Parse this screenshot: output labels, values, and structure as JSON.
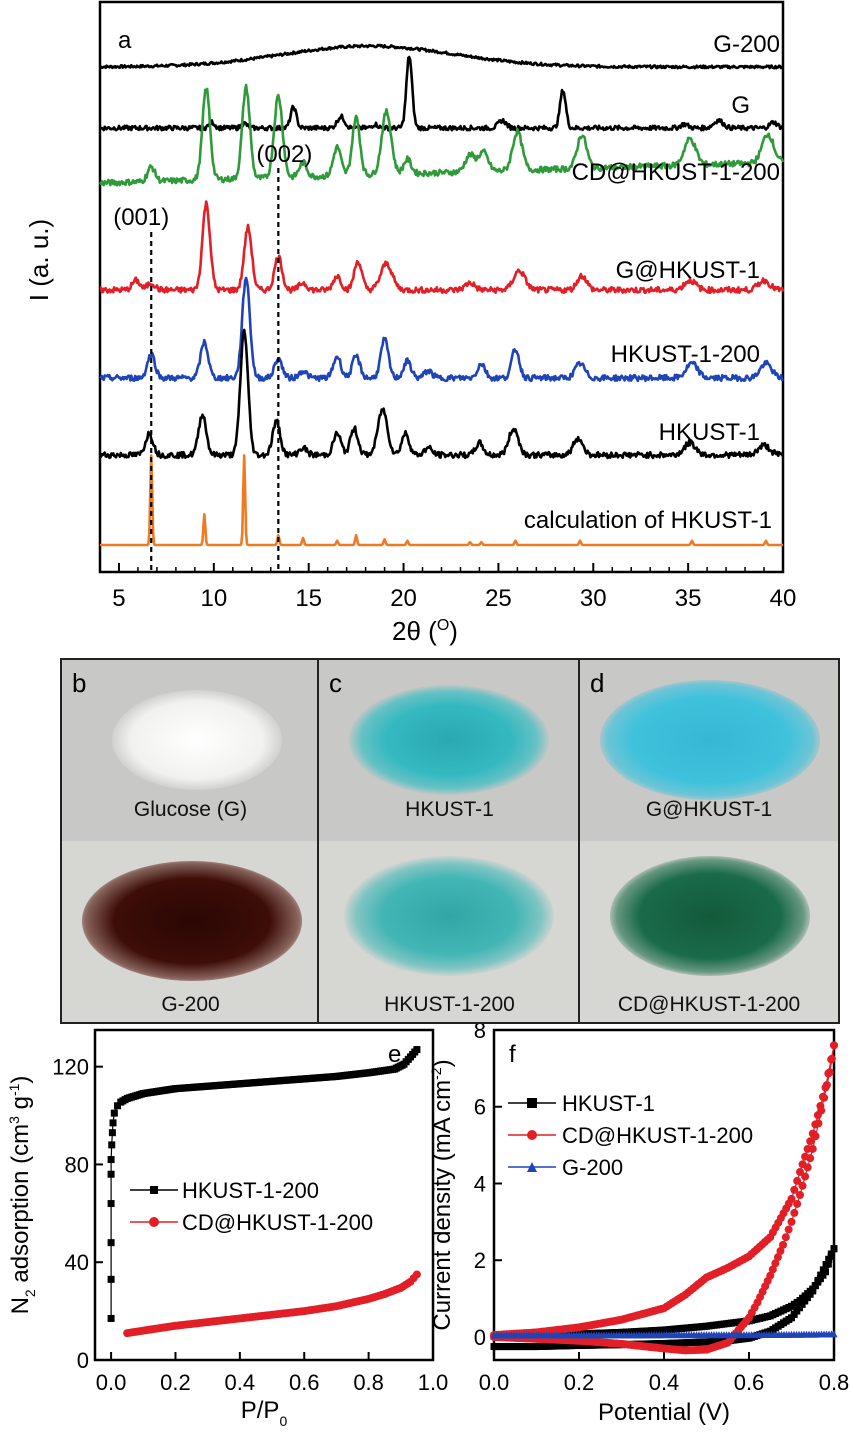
{
  "chart_data": [
    {
      "panel": "a",
      "type": "line",
      "xlabel": "2θ (°)",
      "ylabel": "I (a. u.)",
      "xlim": [
        4,
        40
      ],
      "xticks": [
        5,
        10,
        15,
        20,
        25,
        30,
        35,
        40
      ],
      "yticks": "none",
      "annotations": [
        {
          "text": "(001)",
          "x": 6.7
        },
        {
          "text": "(002)",
          "x": 13.4
        }
      ],
      "series": [
        {
          "name": "G-200",
          "color": "#000000",
          "peaks": [
            {
              "x": 18.2,
              "h": 0.95,
              "w": 4.5
            }
          ]
        },
        {
          "name": "G",
          "color": "#000000",
          "peaks": [
            {
              "x": 9.9,
              "h": 0.15,
              "w": 0.15
            },
            {
              "x": 11.6,
              "h": 0.12,
              "w": 0.15
            },
            {
              "x": 14.2,
              "h": 0.55,
              "w": 0.15
            },
            {
              "x": 16.7,
              "h": 0.3,
              "w": 0.2
            },
            {
              "x": 18.5,
              "h": 0.1,
              "w": 0.15
            },
            {
              "x": 20.3,
              "h": 1.9,
              "w": 0.15
            },
            {
              "x": 25.2,
              "h": 0.2,
              "w": 0.2
            },
            {
              "x": 28.4,
              "h": 1.0,
              "w": 0.15
            },
            {
              "x": 34.8,
              "h": 0.1,
              "w": 0.2
            },
            {
              "x": 36.6,
              "h": 0.2,
              "w": 0.25
            },
            {
              "x": 39.5,
              "h": 0.15,
              "w": 0.2
            }
          ]
        },
        {
          "name": "CD@HKUST-1-200",
          "color": "#2e9a3a",
          "peaks": [
            {
              "x": 6.7,
              "h": 0.3,
              "w": 0.2
            },
            {
              "x": 9.6,
              "h": 1.9,
              "w": 0.2
            },
            {
              "x": 11.7,
              "h": 1.9,
              "w": 0.2
            },
            {
              "x": 13.4,
              "h": 1.7,
              "w": 0.22
            },
            {
              "x": 14.7,
              "h": 0.3,
              "w": 0.2
            },
            {
              "x": 16.5,
              "h": 0.6,
              "w": 0.2
            },
            {
              "x": 17.5,
              "h": 1.2,
              "w": 0.2
            },
            {
              "x": 19.1,
              "h": 1.3,
              "w": 0.25
            },
            {
              "x": 20.2,
              "h": 0.3,
              "w": 0.2
            },
            {
              "x": 23.5,
              "h": 0.35,
              "w": 0.25
            },
            {
              "x": 24.2,
              "h": 0.4,
              "w": 0.25
            },
            {
              "x": 26.0,
              "h": 0.8,
              "w": 0.25
            },
            {
              "x": 29.4,
              "h": 0.7,
              "w": 0.25
            },
            {
              "x": 35.1,
              "h": 0.55,
              "w": 0.3
            },
            {
              "x": 39.2,
              "h": 0.6,
              "w": 0.3
            }
          ]
        },
        {
          "name": "G@HKUST-1",
          "color": "#e21f26",
          "peaks": [
            {
              "x": 5.9,
              "h": 0.2,
              "w": 0.2
            },
            {
              "x": 6.7,
              "h": 0.15,
              "w": 0.2
            },
            {
              "x": 9.6,
              "h": 1.8,
              "w": 0.2
            },
            {
              "x": 11.8,
              "h": 1.3,
              "w": 0.2
            },
            {
              "x": 13.4,
              "h": 0.7,
              "w": 0.2
            },
            {
              "x": 14.7,
              "h": 0.15,
              "w": 0.2
            },
            {
              "x": 16.5,
              "h": 0.3,
              "w": 0.2
            },
            {
              "x": 17.6,
              "h": 0.6,
              "w": 0.2
            },
            {
              "x": 19.1,
              "h": 0.55,
              "w": 0.3
            },
            {
              "x": 23.5,
              "h": 0.15,
              "w": 0.25
            },
            {
              "x": 26.1,
              "h": 0.4,
              "w": 0.3
            },
            {
              "x": 29.4,
              "h": 0.3,
              "w": 0.25
            },
            {
              "x": 35.1,
              "h": 0.2,
              "w": 0.3
            },
            {
              "x": 39.0,
              "h": 0.2,
              "w": 0.3
            }
          ]
        },
        {
          "name": "HKUST-1-200",
          "color": "#1f44b8",
          "peaks": [
            {
              "x": 6.7,
              "h": 0.5,
              "w": 0.2
            },
            {
              "x": 9.5,
              "h": 0.75,
              "w": 0.2
            },
            {
              "x": 11.7,
              "h": 2.1,
              "w": 0.2
            },
            {
              "x": 13.4,
              "h": 0.4,
              "w": 0.2
            },
            {
              "x": 14.7,
              "h": 0.15,
              "w": 0.2
            },
            {
              "x": 16.5,
              "h": 0.45,
              "w": 0.2
            },
            {
              "x": 17.5,
              "h": 0.45,
              "w": 0.2
            },
            {
              "x": 19.0,
              "h": 0.8,
              "w": 0.2
            },
            {
              "x": 20.2,
              "h": 0.35,
              "w": 0.2
            },
            {
              "x": 21.3,
              "h": 0.15,
              "w": 0.2
            },
            {
              "x": 24.1,
              "h": 0.3,
              "w": 0.2
            },
            {
              "x": 25.9,
              "h": 0.6,
              "w": 0.2
            },
            {
              "x": 29.3,
              "h": 0.3,
              "w": 0.25
            },
            {
              "x": 35.2,
              "h": 0.3,
              "w": 0.3
            },
            {
              "x": 39.1,
              "h": 0.3,
              "w": 0.3
            }
          ]
        },
        {
          "name": "HKUST-1",
          "color": "#000000",
          "peaks": [
            {
              "x": 6.6,
              "h": 0.45,
              "w": 0.2
            },
            {
              "x": 9.4,
              "h": 0.85,
              "w": 0.2
            },
            {
              "x": 11.6,
              "h": 2.6,
              "w": 0.2
            },
            {
              "x": 13.3,
              "h": 0.7,
              "w": 0.2
            },
            {
              "x": 14.7,
              "h": 0.15,
              "w": 0.2
            },
            {
              "x": 16.5,
              "h": 0.45,
              "w": 0.2
            },
            {
              "x": 17.4,
              "h": 0.55,
              "w": 0.2
            },
            {
              "x": 18.9,
              "h": 0.95,
              "w": 0.25
            },
            {
              "x": 20.1,
              "h": 0.45,
              "w": 0.2
            },
            {
              "x": 21.3,
              "h": 0.15,
              "w": 0.2
            },
            {
              "x": 24.0,
              "h": 0.25,
              "w": 0.2
            },
            {
              "x": 25.8,
              "h": 0.55,
              "w": 0.25
            },
            {
              "x": 29.2,
              "h": 0.35,
              "w": 0.25
            },
            {
              "x": 35.1,
              "h": 0.25,
              "w": 0.3
            },
            {
              "x": 39.0,
              "h": 0.2,
              "w": 0.3
            }
          ]
        },
        {
          "name": "calculation of HKUST-1",
          "color": "#f07a22",
          "peaks": [
            {
              "x": 6.7,
              "h": 3.2,
              "w": 0.05
            },
            {
              "x": 9.5,
              "h": 1.1,
              "w": 0.05
            },
            {
              "x": 11.6,
              "h": 3.2,
              "w": 0.05
            },
            {
              "x": 13.4,
              "h": 0.35,
              "w": 0.05
            },
            {
              "x": 14.7,
              "h": 0.25,
              "w": 0.05
            },
            {
              "x": 16.5,
              "h": 0.15,
              "w": 0.05
            },
            {
              "x": 17.5,
              "h": 0.35,
              "w": 0.05
            },
            {
              "x": 19.0,
              "h": 0.2,
              "w": 0.05
            },
            {
              "x": 20.2,
              "h": 0.15,
              "w": 0.05
            },
            {
              "x": 23.5,
              "h": 0.1,
              "w": 0.05
            },
            {
              "x": 24.1,
              "h": 0.1,
              "w": 0.05
            },
            {
              "x": 25.9,
              "h": 0.15,
              "w": 0.05
            },
            {
              "x": 29.3,
              "h": 0.15,
              "w": 0.05
            },
            {
              "x": 35.2,
              "h": 0.15,
              "w": 0.05
            },
            {
              "x": 39.1,
              "h": 0.15,
              "w": 0.05
            }
          ]
        }
      ]
    },
    {
      "panel": "e",
      "type": "scatter",
      "xlabel": "P/P",
      "xlabel_sub": "0",
      "ylabel": "N2 adsorption (cm3 g-1)",
      "xlim": [
        -0.05,
        1.0
      ],
      "ylim": [
        0,
        135
      ],
      "xticks": [
        0.0,
        0.2,
        0.4,
        0.6,
        0.8,
        1.0
      ],
      "xtick_labels": [
        "0.0",
        "0.2",
        "0.4",
        "0.6",
        "0.8",
        "1.0"
      ],
      "yticks": [
        0,
        40,
        80,
        120
      ],
      "legend": "center-left",
      "series": [
        {
          "name": "HKUST-1-200",
          "color": "#000000",
          "marker": "square",
          "low_pressure_points": [
            [
              0.0,
              17
            ],
            [
              0.0,
              33
            ],
            [
              0.0,
              48
            ],
            [
              0.0,
              64
            ],
            [
              0.0,
              76
            ],
            [
              0.0,
              82
            ],
            [
              0.002,
              88
            ],
            [
              0.004,
              93
            ],
            [
              0.006,
              97
            ],
            [
              0.01,
              101
            ],
            [
              0.02,
              104
            ]
          ],
          "x": [
            0.03,
            0.05,
            0.1,
            0.2,
            0.3,
            0.4,
            0.5,
            0.6,
            0.7,
            0.8,
            0.88,
            0.91,
            0.93,
            0.95
          ],
          "y": [
            105.5,
            107,
            109,
            111,
            112,
            113,
            114,
            115,
            116,
            117.5,
            119,
            121,
            124,
            127
          ]
        },
        {
          "name": "CD@HKUST-1-200",
          "color": "#e21f26",
          "marker": "circle",
          "x": [
            0.05,
            0.1,
            0.2,
            0.3,
            0.4,
            0.5,
            0.6,
            0.7,
            0.8,
            0.85,
            0.9,
            0.93,
            0.95
          ],
          "y": [
            11,
            12,
            14,
            15.5,
            17,
            18.5,
            20,
            22,
            25,
            27,
            29.5,
            32,
            35
          ]
        }
      ]
    },
    {
      "panel": "f",
      "type": "scatter",
      "xlabel": "Potential (V)",
      "ylabel": "Current density (mA cm-2)",
      "xlim": [
        0.0,
        0.8
      ],
      "ylim": [
        -0.6,
        8
      ],
      "xticks": [
        0.0,
        0.2,
        0.4,
        0.6,
        0.8
      ],
      "xtick_labels": [
        "0.0",
        "0.2",
        "0.4",
        "0.6",
        "0.8"
      ],
      "yticks": [
        0,
        2,
        4,
        6,
        8
      ],
      "legend": "upper-left",
      "series": [
        {
          "name": "HKUST-1",
          "color": "#000000",
          "marker": "square",
          "forward": {
            "x": [
              0.0,
              0.1,
              0.2,
              0.3,
              0.4,
              0.5,
              0.55,
              0.6,
              0.65,
              0.7,
              0.75,
              0.8
            ],
            "y": [
              -0.25,
              -0.25,
              -0.22,
              -0.2,
              -0.17,
              -0.13,
              -0.1,
              -0.03,
              0.15,
              0.5,
              1.2,
              2.3
            ]
          },
          "reverse": {
            "x": [
              0.8,
              0.78,
              0.75,
              0.72,
              0.7,
              0.65,
              0.6,
              0.5,
              0.4,
              0.3,
              0.2,
              0.1,
              0.0
            ],
            "y": [
              2.3,
              1.7,
              1.25,
              0.95,
              0.8,
              0.55,
              0.42,
              0.28,
              0.18,
              0.12,
              0.08,
              0.04,
              0.02
            ]
          }
        },
        {
          "name": "CD@HKUST-1-200",
          "color": "#e21f26",
          "marker": "circle",
          "forward": {
            "x": [
              0.0,
              0.1,
              0.2,
              0.3,
              0.4,
              0.45,
              0.5,
              0.55,
              0.6,
              0.62,
              0.65,
              0.68,
              0.7,
              0.72,
              0.75,
              0.77,
              0.79,
              0.8
            ],
            "y": [
              0.0,
              -0.05,
              -0.1,
              -0.18,
              -0.3,
              -0.35,
              -0.33,
              -0.15,
              0.5,
              0.9,
              1.6,
              2.4,
              3.0,
              3.7,
              4.9,
              5.9,
              6.9,
              7.6
            ]
          },
          "reverse": {
            "x": [
              0.8,
              0.78,
              0.75,
              0.72,
              0.7,
              0.65,
              0.6,
              0.55,
              0.5,
              0.45,
              0.4,
              0.3,
              0.2,
              0.1,
              0.0
            ],
            "y": [
              7.6,
              6.5,
              5.3,
              4.3,
              3.6,
              2.6,
              2.1,
              1.8,
              1.55,
              1.1,
              0.75,
              0.45,
              0.25,
              0.12,
              0.05
            ]
          }
        },
        {
          "name": "G-200",
          "color": "#1f44b8",
          "marker": "triangle",
          "forward": {
            "x": [
              0.0,
              0.1,
              0.2,
              0.3,
              0.4,
              0.5,
              0.6,
              0.7,
              0.8
            ],
            "y": [
              0.05,
              0.05,
              0.05,
              0.05,
              0.06,
              0.06,
              0.06,
              0.07,
              0.08
            ]
          }
        }
      ]
    }
  ],
  "photos": {
    "panel_b": {
      "letter": "b",
      "top": "Glucose (G)",
      "bottom": "G-200"
    },
    "panel_c": {
      "letter": "c",
      "top": "HKUST-1",
      "bottom": "HKUST-1-200"
    },
    "panel_d": {
      "letter": "d",
      "top": "G@HKUST-1",
      "bottom": "CD@HKUST-1-200"
    }
  },
  "colors": {
    "glucose": "#f2f2f0",
    "g200": "#3a0e08",
    "hkust1": "#33b8c0",
    "hkust1_200": "#3fb4b3",
    "g_hkust1": "#3bbfd8",
    "cd_hkust1_200": "#1a6b4a",
    "photo_bg_top": "#c8c8c6",
    "photo_bg_bottom": "#d6d6d2"
  }
}
